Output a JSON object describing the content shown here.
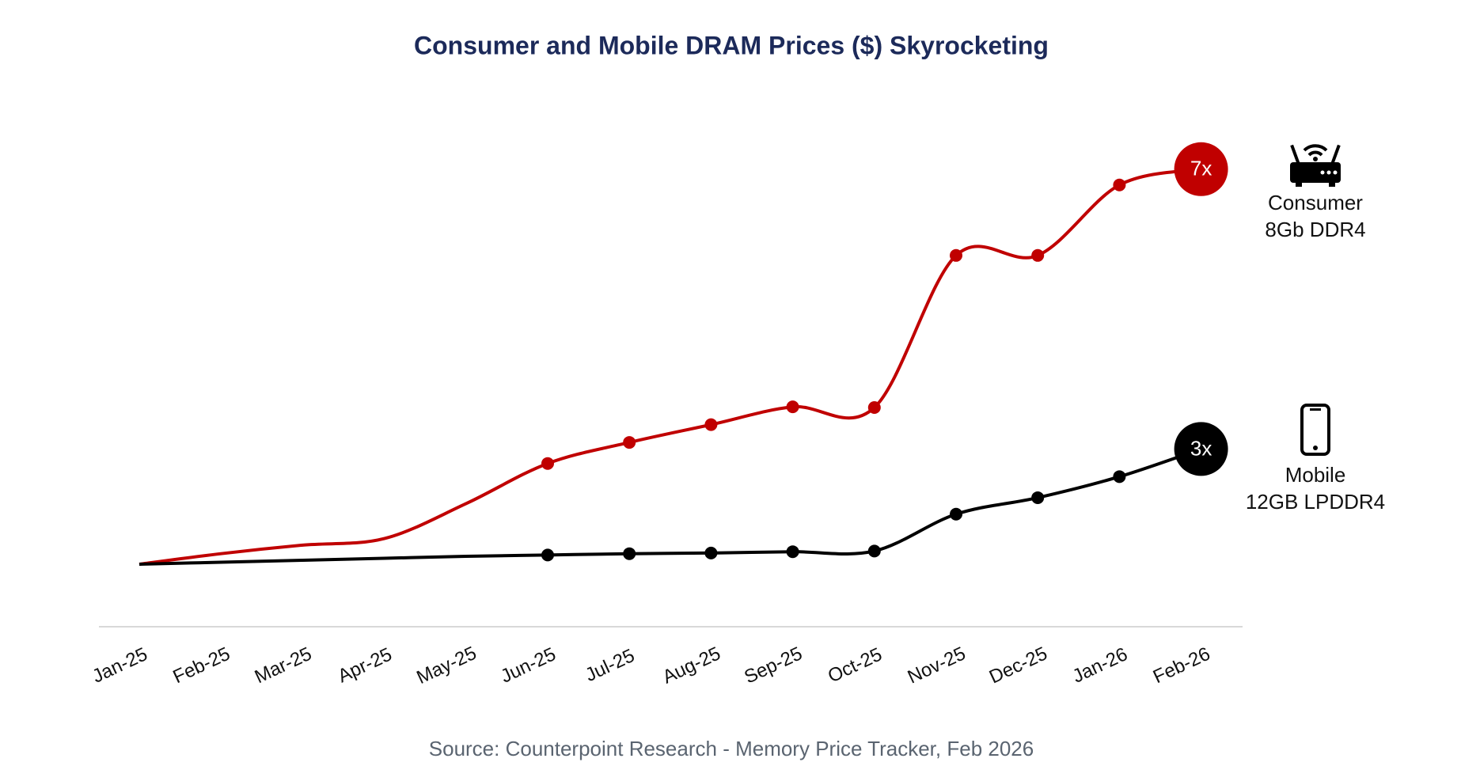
{
  "chart_data": {
    "type": "line",
    "title": "Consumer and Mobile DRAM Prices ($) Skyrocketing",
    "source": "Source: Counterpoint Research - Memory Price Tracker, Feb 2026",
    "categories": [
      "Jan-25",
      "Feb-25",
      "Mar-25",
      "Apr-25",
      "May-25",
      "Jun-25",
      "Jul-25",
      "Aug-25",
      "Sep-25",
      "Oct-25",
      "Nov-25",
      "Dec-25",
      "Jan-26",
      "Feb-26"
    ],
    "series": [
      {
        "name": "Consumer\n8Gb DDR4",
        "color": "#c00000",
        "values": [
          1.0,
          1.16,
          1.29,
          1.39,
          1.92,
          2.53,
          2.85,
          3.12,
          3.39,
          3.38,
          5.69,
          5.69,
          6.76,
          7.0
        ],
        "value_labels": [
          null,
          null,
          null,
          null,
          null,
          null,
          null,
          null,
          null,
          null,
          null,
          null,
          null,
          "7x"
        ]
      },
      {
        "name": "Mobile\n12GB LPDDR4",
        "color": "#000000",
        "values": [
          1.0,
          1.03,
          1.06,
          1.09,
          1.12,
          1.14,
          1.16,
          1.17,
          1.19,
          1.2,
          1.76,
          2.01,
          2.33,
          2.75
        ],
        "value_labels": [
          null,
          null,
          null,
          null,
          null,
          null,
          null,
          null,
          null,
          null,
          null,
          null,
          null,
          "3x"
        ]
      }
    ]
  }
}
